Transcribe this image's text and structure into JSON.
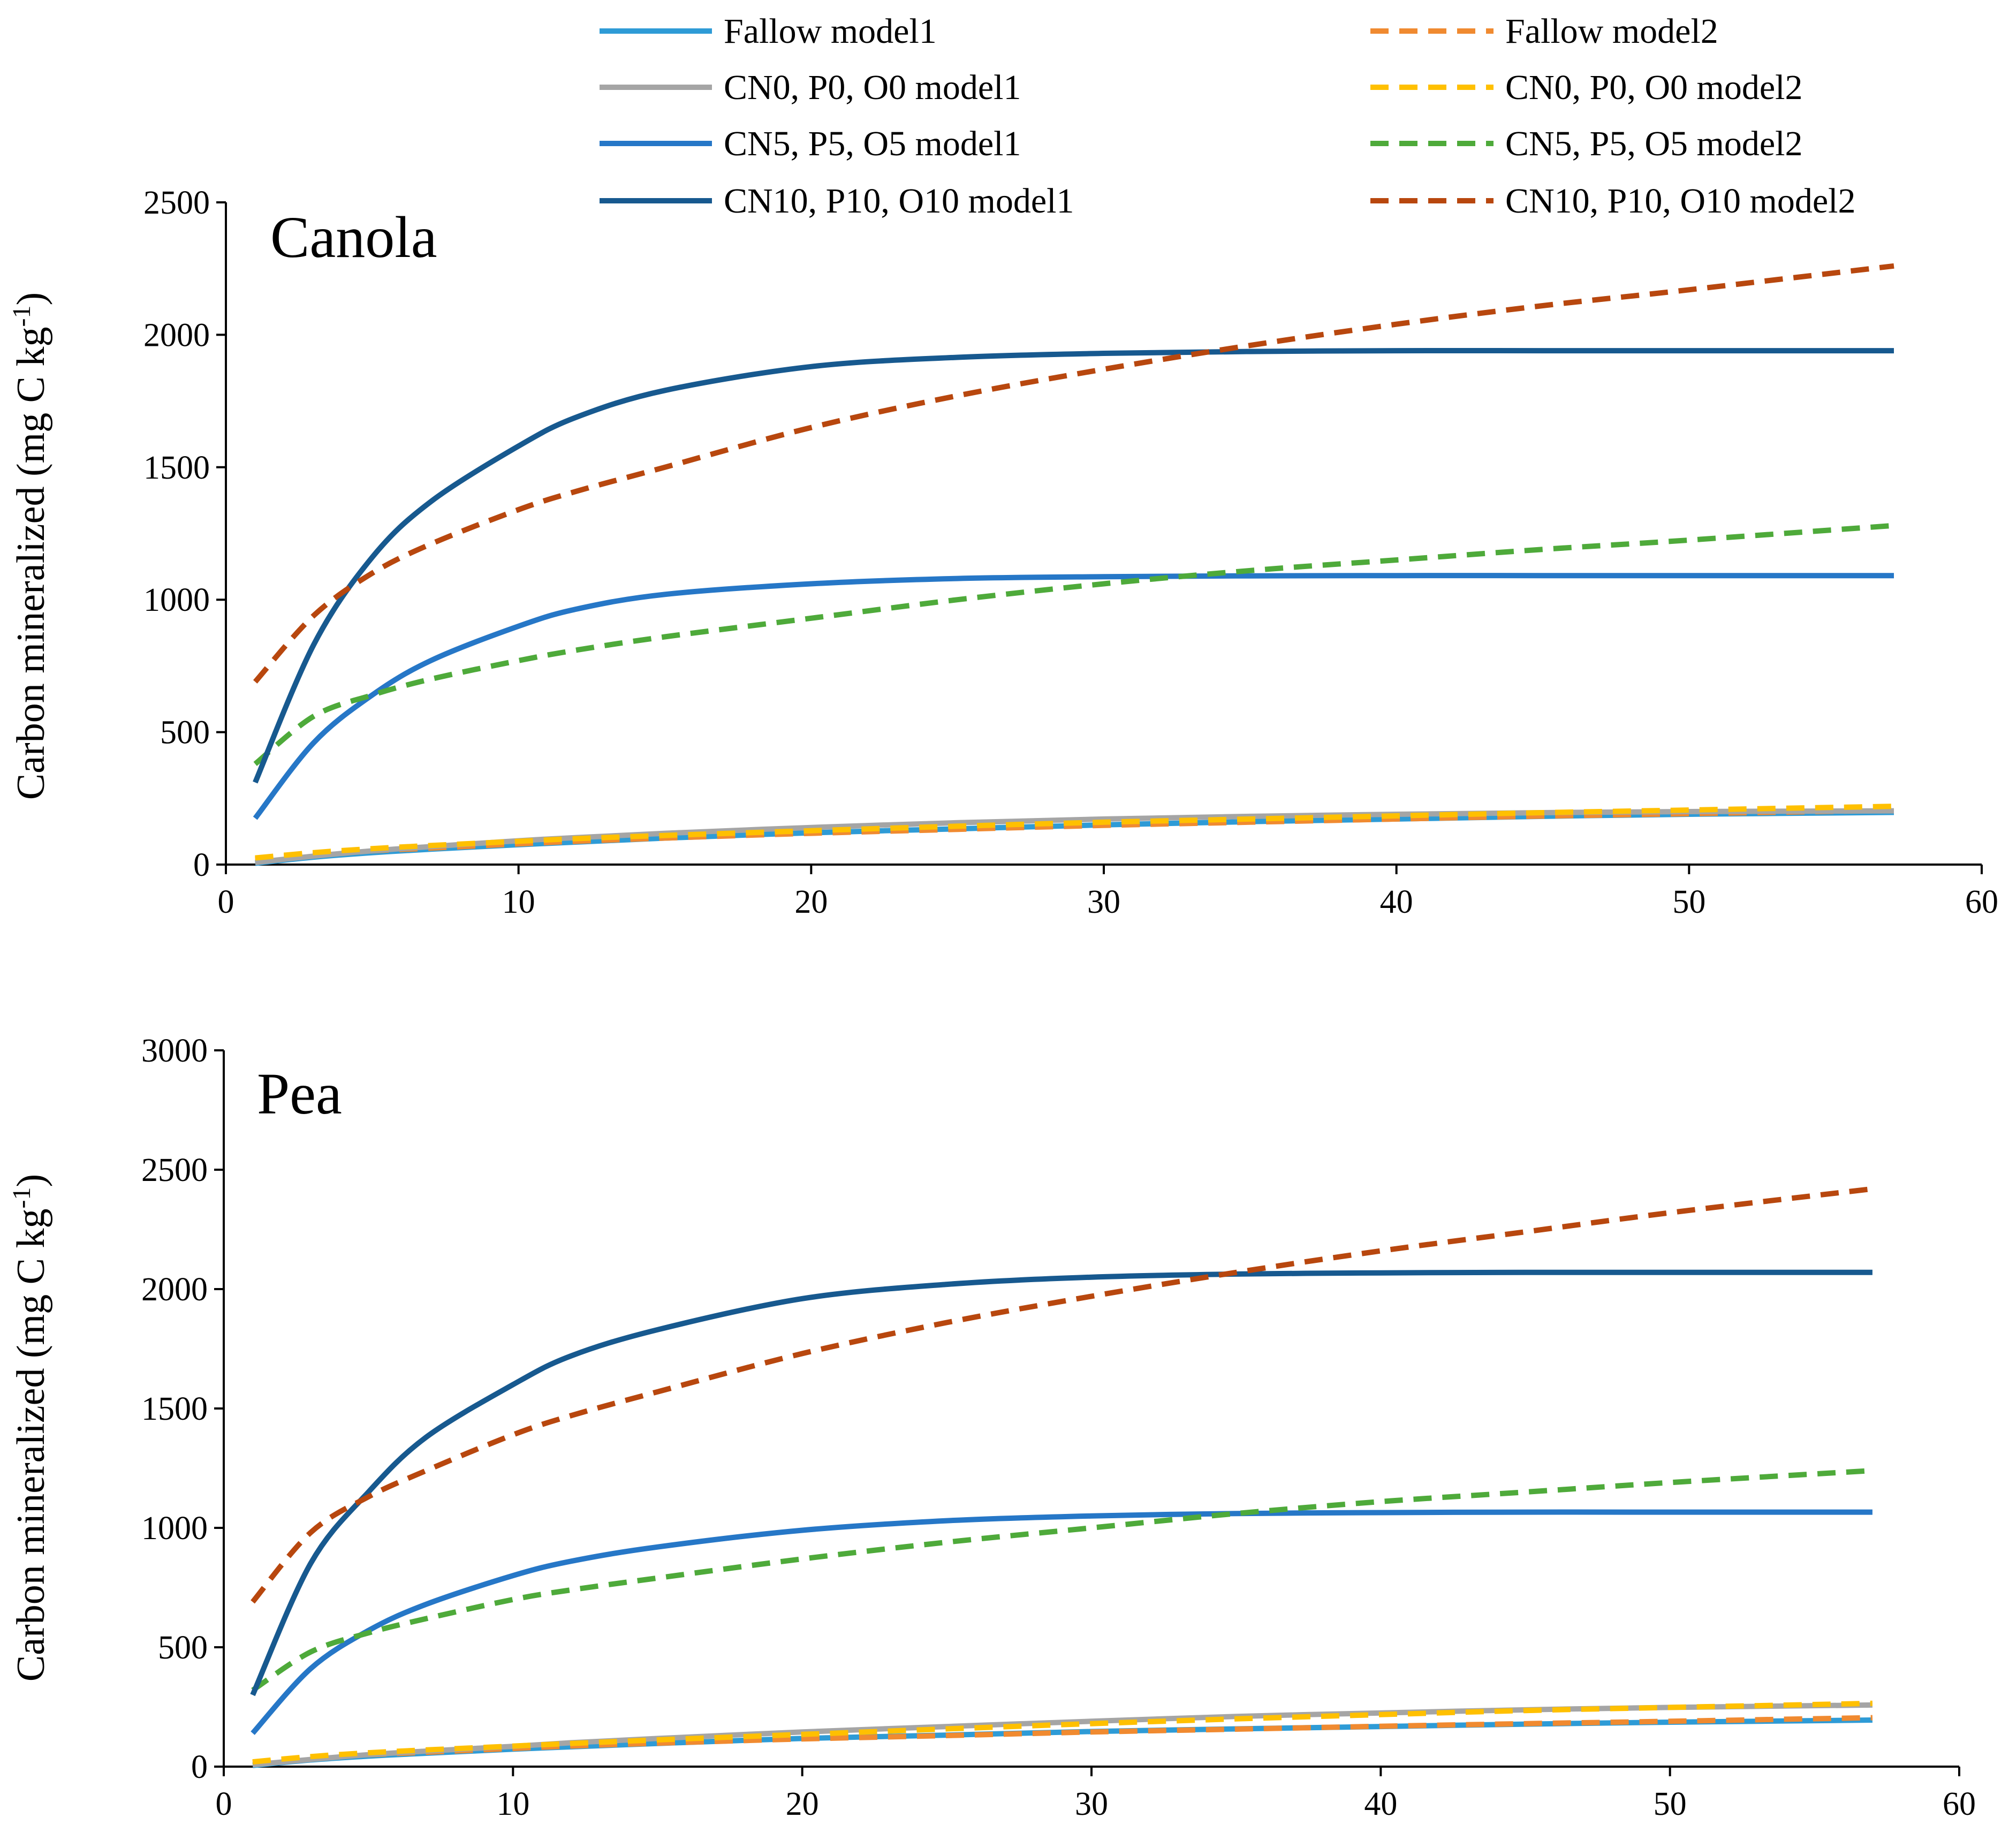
{
  "legend": [
    {
      "label": "Fallow model1",
      "color": "#2E9BD6",
      "dash": false
    },
    {
      "label": "Fallow model2",
      "color": "#F08A30",
      "dash": true
    },
    {
      "label": "CN0, P0, O0 model1",
      "color": "#A5A5A5",
      "dash": false
    },
    {
      "label": "CN0, P0, O0 model2",
      "color": "#FFC000",
      "dash": true
    },
    {
      "label": "CN5, P5, O5 model1",
      "color": "#2677C7",
      "dash": false
    },
    {
      "label": "CN5, P5, O5 model2",
      "color": "#4EAA3A",
      "dash": true
    },
    {
      "label": "CN10, P10, O10 model1",
      "color": "#17598F",
      "dash": false
    },
    {
      "label": "CN10, P10, O10 model2",
      "color": "#B8470E",
      "dash": true
    }
  ],
  "chart_data": [
    {
      "type": "line",
      "title": "Canola",
      "xlabel": "",
      "ylabel": "Carbon mineralized (mg C kg",
      "ylabel_sup": "-1",
      "ylabel_end": ")",
      "xlim": [
        0,
        60
      ],
      "ylim": [
        0,
        2500
      ],
      "xticks": [
        0,
        10,
        20,
        30,
        40,
        50,
        60
      ],
      "yticks": [
        0,
        500,
        1000,
        1500,
        2000,
        2500
      ],
      "x": [
        1,
        3,
        5,
        7,
        10,
        12,
        15,
        20,
        25,
        30,
        35,
        40,
        45,
        50,
        57
      ],
      "series": [
        {
          "name": "Fallow model1",
          "color": "#2E9BD6",
          "dash": false,
          "values": [
            5,
            28,
            45,
            58,
            75,
            85,
            100,
            120,
            135,
            150,
            162,
            172,
            182,
            190,
            197
          ]
        },
        {
          "name": "Fallow model2",
          "color": "#F08A30",
          "dash": true,
          "values": [
            20,
            38,
            52,
            62,
            78,
            88,
            100,
            118,
            133,
            148,
            160,
            172,
            183,
            192,
            205
          ]
        },
        {
          "name": "CN0, P0, O0 model1",
          "color": "#A5A5A5",
          "dash": false,
          "values": [
            8,
            32,
            52,
            68,
            90,
            102,
            118,
            140,
            158,
            172,
            182,
            190,
            196,
            200,
            203
          ]
        },
        {
          "name": "CN0, P0, O0 model2",
          "color": "#FFC000",
          "dash": true,
          "values": [
            25,
            45,
            60,
            72,
            88,
            98,
            110,
            128,
            145,
            160,
            172,
            184,
            196,
            206,
            220
          ]
        },
        {
          "name": "CN5, P5, O5 model1",
          "color": "#2677C7",
          "dash": false,
          "values": [
            175,
            460,
            640,
            770,
            900,
            965,
            1020,
            1060,
            1080,
            1087,
            1090,
            1091,
            1091,
            1091,
            1091
          ]
        },
        {
          "name": "CN5, P5, O5 model2",
          "color": "#4EAA3A",
          "dash": true,
          "values": [
            380,
            560,
            640,
            700,
            770,
            810,
            860,
            930,
            1000,
            1060,
            1110,
            1150,
            1190,
            1225,
            1280
          ]
        },
        {
          "name": "CN10, P10, O10 model1",
          "color": "#17598F",
          "dash": false,
          "values": [
            310,
            830,
            1160,
            1370,
            1580,
            1690,
            1790,
            1880,
            1915,
            1930,
            1937,
            1940,
            1940,
            1940,
            1940
          ]
        },
        {
          "name": "CN10, P10, O10 model2",
          "color": "#B8470E",
          "dash": true,
          "values": [
            690,
            940,
            1100,
            1210,
            1340,
            1410,
            1500,
            1650,
            1770,
            1870,
            1960,
            2040,
            2110,
            2170,
            2260
          ]
        }
      ]
    },
    {
      "type": "line",
      "title": "Pea",
      "xlabel": "",
      "ylabel": "Carbon mineralized (mg C kg",
      "ylabel_sup": "-1",
      "ylabel_end": ")",
      "xlim": [
        0,
        60
      ],
      "ylim": [
        0,
        3000
      ],
      "xticks": [
        0,
        10,
        20,
        30,
        40,
        50,
        60
      ],
      "yticks": [
        0,
        500,
        1000,
        1500,
        2000,
        2500,
        3000
      ],
      "x": [
        1,
        3,
        5,
        7,
        10,
        12,
        15,
        20,
        25,
        30,
        35,
        40,
        45,
        50,
        57
      ],
      "series": [
        {
          "name": "Fallow model1",
          "color": "#2E9BD6",
          "dash": false,
          "values": [
            5,
            28,
            44,
            56,
            73,
            83,
            97,
            118,
            132,
            147,
            158,
            168,
            178,
            186,
            195
          ]
        },
        {
          "name": "Fallow model2",
          "color": "#F08A30",
          "dash": true,
          "values": [
            18,
            36,
            50,
            60,
            76,
            86,
            98,
            116,
            130,
            145,
            157,
            169,
            180,
            190,
            205
          ]
        },
        {
          "name": "CN0, P0, O0 model1",
          "color": "#A5A5A5",
          "dash": false,
          "values": [
            8,
            30,
            50,
            65,
            85,
            100,
            118,
            145,
            168,
            190,
            210,
            225,
            238,
            248,
            258
          ]
        },
        {
          "name": "CN0, P0, O0 model2",
          "color": "#FFC000",
          "dash": true,
          "values": [
            20,
            42,
            58,
            70,
            86,
            97,
            112,
            135,
            158,
            180,
            200,
            218,
            235,
            248,
            265
          ]
        },
        {
          "name": "CN5, P5, O5 model1",
          "color": "#2677C7",
          "dash": false,
          "values": [
            140,
            410,
            570,
            680,
            800,
            860,
            920,
            990,
            1030,
            1050,
            1060,
            1064,
            1066,
            1066,
            1066
          ]
        },
        {
          "name": "CN5, P5, O5 model2",
          "color": "#4EAA3A",
          "dash": true,
          "values": [
            320,
            480,
            560,
            620,
            700,
            740,
            790,
            870,
            940,
            1000,
            1060,
            1110,
            1150,
            1190,
            1240
          ]
        },
        {
          "name": "CN10, P10, O10 model1",
          "color": "#17598F",
          "dash": false,
          "values": [
            300,
            850,
            1150,
            1380,
            1600,
            1720,
            1830,
            1960,
            2020,
            2050,
            2063,
            2068,
            2070,
            2070,
            2070
          ]
        },
        {
          "name": "CN10, P10, O10 model2",
          "color": "#B8470E",
          "dash": true,
          "values": [
            690,
            980,
            1130,
            1240,
            1390,
            1470,
            1570,
            1730,
            1860,
            1970,
            2070,
            2160,
            2240,
            2320,
            2420
          ]
        }
      ]
    }
  ]
}
